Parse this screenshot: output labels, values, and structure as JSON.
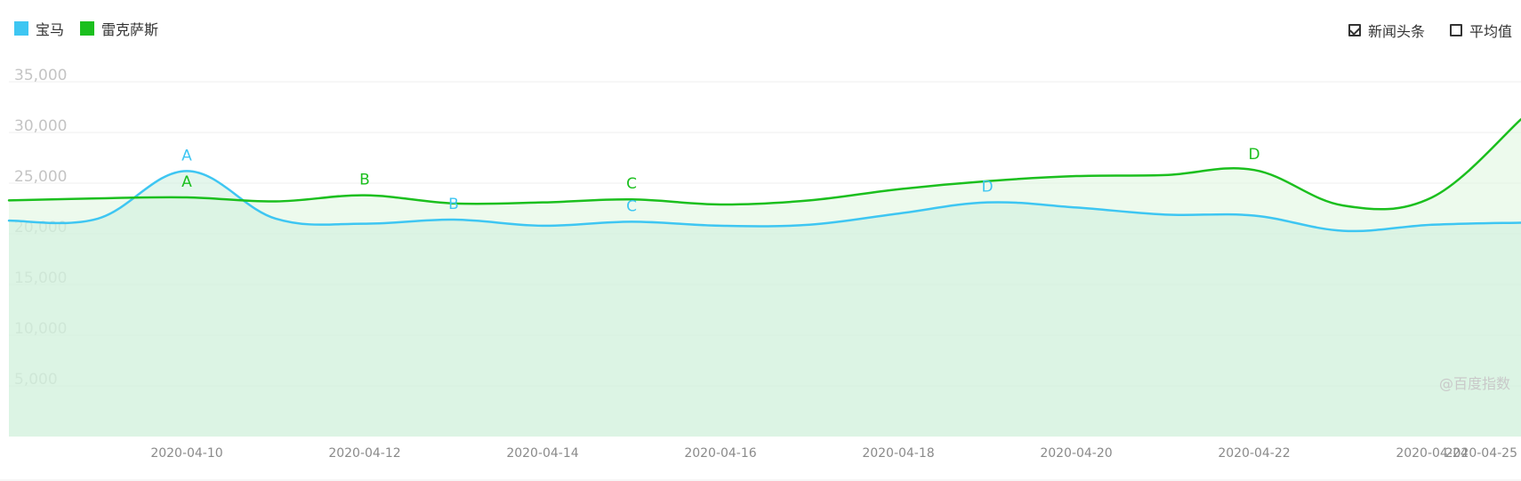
{
  "legend": {
    "items": [
      {
        "label": "宝马",
        "color": "#3ec6f2"
      },
      {
        "label": "雷克萨斯",
        "color": "#1bbf1e"
      }
    ]
  },
  "toggles": {
    "news": {
      "label": "新闻头条",
      "checked": true
    },
    "average": {
      "label": "平均值",
      "checked": false
    }
  },
  "watermark": "@百度指数",
  "chart_data": {
    "type": "area",
    "x": [
      "2020-04-08",
      "2020-04-09",
      "2020-04-10",
      "2020-04-11",
      "2020-04-12",
      "2020-04-13",
      "2020-04-14",
      "2020-04-15",
      "2020-04-16",
      "2020-04-17",
      "2020-04-18",
      "2020-04-19",
      "2020-04-20",
      "2020-04-21",
      "2020-04-22",
      "2020-04-23",
      "2020-04-24",
      "2020-04-25"
    ],
    "xticks": [
      "2020-04-10",
      "2020-04-12",
      "2020-04-14",
      "2020-04-16",
      "2020-04-18",
      "2020-04-20",
      "2020-04-22",
      "2020-04-24",
      "2020-04-25"
    ],
    "yticks": [
      "35,000",
      "30,000",
      "25,000",
      "20,000",
      "15,000",
      "10,000",
      "5,000"
    ],
    "ylim": [
      0,
      35000
    ],
    "grid": true,
    "legend_position": "top-left",
    "series": [
      {
        "name": "宝马",
        "color": "#3ec6f2",
        "values": [
          21300,
          21500,
          26200,
          21500,
          21000,
          21400,
          20800,
          21200,
          20800,
          20900,
          22000,
          23100,
          22600,
          21900,
          21800,
          20300,
          20900,
          21100
        ]
      },
      {
        "name": "雷克萨斯",
        "color": "#1bbf1e",
        "values": [
          23300,
          23500,
          23600,
          23200,
          23800,
          23000,
          23100,
          23400,
          22900,
          23300,
          24400,
          25200,
          25700,
          25800,
          26300,
          22800,
          23600,
          31300
        ]
      }
    ],
    "annotations": [
      {
        "series": "宝马",
        "label": "A",
        "x": "2020-04-10",
        "y": 26200
      },
      {
        "series": "雷克萨斯",
        "label": "A",
        "x": "2020-04-10",
        "y": 23600
      },
      {
        "series": "雷克萨斯",
        "label": "B",
        "x": "2020-04-12",
        "y": 23800
      },
      {
        "series": "宝马",
        "label": "B",
        "x": "2020-04-13",
        "y": 21400
      },
      {
        "series": "雷克萨斯",
        "label": "C",
        "x": "2020-04-15",
        "y": 23400
      },
      {
        "series": "宝马",
        "label": "C",
        "x": "2020-04-15",
        "y": 21200
      },
      {
        "series": "宝马",
        "label": "D",
        "x": "2020-04-19",
        "y": 23100
      },
      {
        "series": "雷克萨斯",
        "label": "D",
        "x": "2020-04-22",
        "y": 26300
      }
    ]
  }
}
